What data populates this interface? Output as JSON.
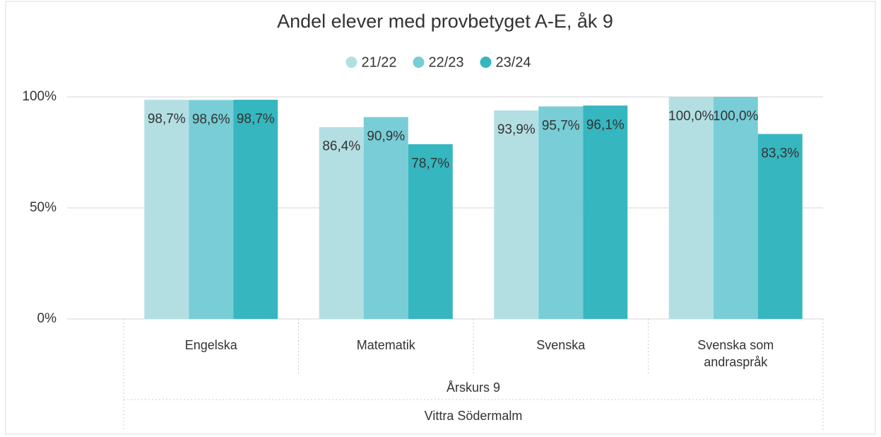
{
  "chart_data": {
    "type": "bar",
    "title": "Andel elever med provbetyget A-E, åk 9",
    "categories": [
      "Engelska",
      "Matematik",
      "Svenska",
      "Svenska som andraspråk"
    ],
    "x_group_labels": [
      "Årskurs 9",
      "Vittra Södermalm"
    ],
    "series": [
      {
        "name": "21/22",
        "color": "#b3dfe3",
        "values": [
          98.7,
          86.4,
          93.9,
          100.0
        ],
        "value_labels": [
          "98,7%",
          "86,4%",
          "93,9%",
          "100,0%"
        ]
      },
      {
        "name": "22/23",
        "color": "#78cdd6",
        "values": [
          98.6,
          90.9,
          95.7,
          100.0
        ],
        "value_labels": [
          "98,6%",
          "90,9%",
          "95,7%",
          "100,0%"
        ]
      },
      {
        "name": "23/24",
        "color": "#36b6bf",
        "values": [
          98.7,
          78.7,
          96.1,
          83.3
        ],
        "value_labels": [
          "98,7%",
          "78,7%",
          "96,1%",
          "83,3%"
        ]
      }
    ],
    "ylim": [
      0,
      100
    ],
    "yticks": [
      {
        "value": 0,
        "label": "0%"
      },
      {
        "value": 50,
        "label": "50%"
      },
      {
        "value": 100,
        "label": "100%"
      }
    ],
    "grid": true,
    "legend": "top"
  }
}
